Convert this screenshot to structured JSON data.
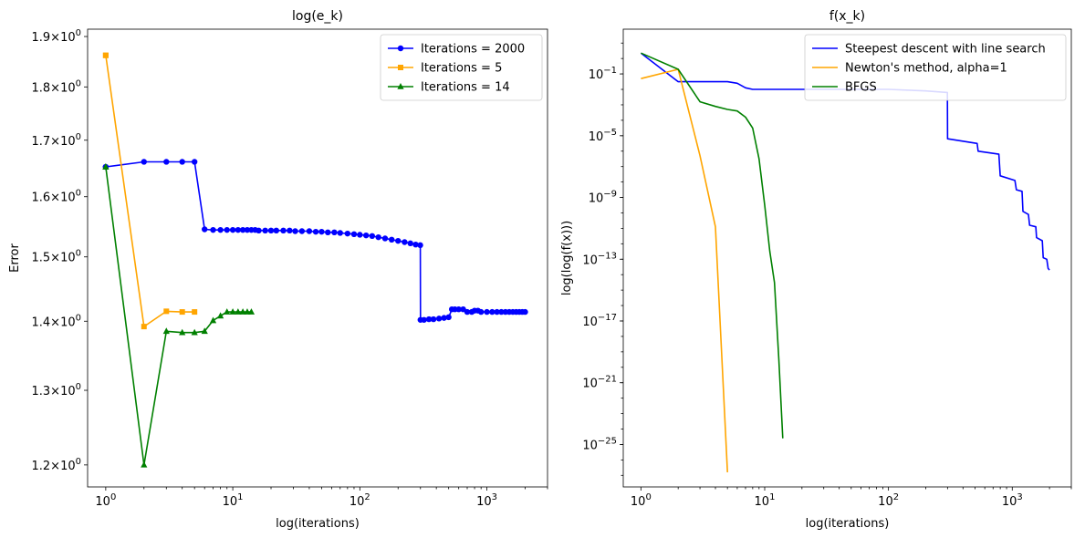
{
  "chart_data": [
    {
      "type": "line",
      "title": "log(e_k)",
      "xlabel": "log(iterations)",
      "ylabel": "Error",
      "xscale": "log",
      "yscale": "log",
      "xlim": [
        0.72,
        3000
      ],
      "ylim": [
        1.172,
        1.915
      ],
      "x_ticks": [
        {
          "v": 1,
          "base": "10",
          "exp": "0"
        },
        {
          "v": 10,
          "base": "10",
          "exp": "1"
        },
        {
          "v": 100,
          "base": "10",
          "exp": "2"
        },
        {
          "v": 1000,
          "base": "10",
          "exp": "3"
        }
      ],
      "y_ticks": [
        {
          "v": 1.2,
          "mant": "1.2",
          "exp": "0"
        },
        {
          "v": 1.3,
          "mant": "1.3",
          "exp": "0"
        },
        {
          "v": 1.4,
          "mant": "1.4",
          "exp": "0"
        },
        {
          "v": 1.5,
          "mant": "1.5",
          "exp": "0"
        },
        {
          "v": 1.6,
          "mant": "1.6",
          "exp": "0"
        },
        {
          "v": 1.7,
          "mant": "1.7",
          "exp": "0"
        },
        {
          "v": 1.8,
          "mant": "1.8",
          "exp": "0"
        },
        {
          "v": 1.9,
          "mant": "1.9",
          "exp": "0"
        }
      ],
      "times_sign": "×",
      "legend_position": "top-right",
      "grid": false,
      "series": [
        {
          "name": "Iterations = 2000",
          "color": "#0000ff",
          "marker": "circle",
          "x": [
            0,
            1,
            2,
            3,
            4,
            5,
            6,
            7,
            8,
            9,
            10,
            11,
            12,
            13,
            14,
            15,
            16,
            18,
            20,
            22,
            25,
            28,
            31,
            35,
            40,
            45,
            50,
            56,
            63,
            70,
            80,
            90,
            100,
            112,
            125,
            140,
            158,
            178,
            200,
            225,
            250,
            275,
            299,
            300,
            320,
            350,
            380,
            420,
            460,
            500,
            530,
            560,
            600,
            650,
            700,
            760,
            800,
            850,
            900,
            1000,
            1100,
            1200,
            1300,
            1400,
            1500,
            1600,
            1700,
            1800,
            1900,
            2000
          ],
          "y": [
            1.652,
            1.652,
            1.661,
            1.661,
            1.661,
            1.661,
            1.545,
            1.544,
            1.544,
            1.544,
            1.544,
            1.544,
            1.544,
            1.544,
            1.544,
            1.544,
            1.543,
            1.543,
            1.543,
            1.543,
            1.543,
            1.543,
            1.542,
            1.542,
            1.542,
            1.541,
            1.541,
            1.54,
            1.54,
            1.539,
            1.538,
            1.537,
            1.536,
            1.535,
            1.534,
            1.532,
            1.53,
            1.528,
            1.526,
            1.524,
            1.522,
            1.52,
            1.519,
            1.402,
            1.402,
            1.403,
            1.403,
            1.404,
            1.405,
            1.406,
            1.418,
            1.418,
            1.418,
            1.418,
            1.414,
            1.414,
            1.416,
            1.416,
            1.414,
            1.414,
            1.414,
            1.414,
            1.414,
            1.414,
            1.414,
            1.414,
            1.414,
            1.414,
            1.414,
            1.414
          ]
        },
        {
          "name": "Iterations = 5",
          "color": "#ffa500",
          "marker": "square",
          "x": [
            0,
            1,
            2,
            3,
            4,
            5
          ],
          "y": [
            1.862,
            1.862,
            1.392,
            1.415,
            1.414,
            1.414
          ]
        },
        {
          "name": "Iterations = 14",
          "color": "#008000",
          "marker": "triangle",
          "x": [
            0,
            1,
            2,
            3,
            4,
            5,
            6,
            7,
            8,
            9,
            10,
            11,
            12,
            13,
            14
          ],
          "y": [
            1.652,
            1.652,
            1.2,
            1.385,
            1.383,
            1.383,
            1.385,
            1.401,
            1.408,
            1.414,
            1.414,
            1.414,
            1.414,
            1.414,
            1.414
          ]
        }
      ]
    },
    {
      "type": "line",
      "title": "f(x_k)",
      "xlabel": "log(iterations)",
      "ylabel": "log(log(f(x)))",
      "xscale": "log",
      "yscale": "log",
      "xlim": [
        0.72,
        3000
      ],
      "ylim_exp": [
        -27.75,
        1.9
      ],
      "x_ticks": [
        {
          "v": 1,
          "base": "10",
          "exp": "0"
        },
        {
          "v": 10,
          "base": "10",
          "exp": "1"
        },
        {
          "v": 100,
          "base": "10",
          "exp": "2"
        },
        {
          "v": 1000,
          "base": "10",
          "exp": "3"
        }
      ],
      "y_ticks": [
        {
          "e": -1,
          "base": "10",
          "exp": "−1"
        },
        {
          "e": -5,
          "base": "10",
          "exp": "−5"
        },
        {
          "e": -9,
          "base": "10",
          "exp": "−9"
        },
        {
          "e": -13,
          "base": "10",
          "exp": "−13"
        },
        {
          "e": -17,
          "base": "10",
          "exp": "−17"
        },
        {
          "e": -21,
          "base": "10",
          "exp": "−21"
        },
        {
          "e": -25,
          "base": "10",
          "exp": "−25"
        }
      ],
      "legend_position": "top-right",
      "grid": false,
      "series": [
        {
          "name": "Steepest descent with line search",
          "color": "#0000ff",
          "x": [
            0,
            1,
            2,
            3,
            4,
            5,
            6,
            7,
            8,
            10,
            15,
            20,
            30,
            50,
            100,
            200,
            299,
            300,
            520,
            530,
            780,
            800,
            1050,
            1080,
            1200,
            1220,
            1350,
            1380,
            1550,
            1570,
            1750,
            1780,
            1900,
            1950,
            2000
          ],
          "y_exp": [
            0.35,
            0.35,
            -1.5,
            -1.5,
            -1.5,
            -1.5,
            -1.6,
            -1.9,
            -2.0,
            -2.0,
            -2.0,
            -2.0,
            -2.0,
            -2.0,
            -2.0,
            -2.1,
            -2.2,
            -5.2,
            -5.5,
            -6.0,
            -6.2,
            -7.6,
            -7.9,
            -8.5,
            -8.6,
            -9.9,
            -10.1,
            -10.8,
            -10.9,
            -11.6,
            -11.8,
            -12.9,
            -13.0,
            -13.6,
            -13.7
          ]
        },
        {
          "name": "Newton's method, alpha=1",
          "color": "#ffa500",
          "x": [
            0,
            1,
            2,
            3,
            4,
            5
          ],
          "y_exp": [
            -1.3,
            -1.3,
            -0.7,
            -6.3,
            -10.9,
            -26.8
          ]
        },
        {
          "name": "BFGS",
          "color": "#008000",
          "x": [
            0,
            1,
            2,
            3,
            4,
            5,
            6,
            7,
            8,
            9,
            10,
            11,
            12,
            13,
            14
          ],
          "y_exp": [
            0.35,
            0.35,
            -0.7,
            -2.8,
            -3.1,
            -3.3,
            -3.4,
            -3.8,
            -4.5,
            -6.5,
            -9.5,
            -12.5,
            -14.5,
            -19.5,
            -24.6
          ]
        }
      ]
    }
  ]
}
